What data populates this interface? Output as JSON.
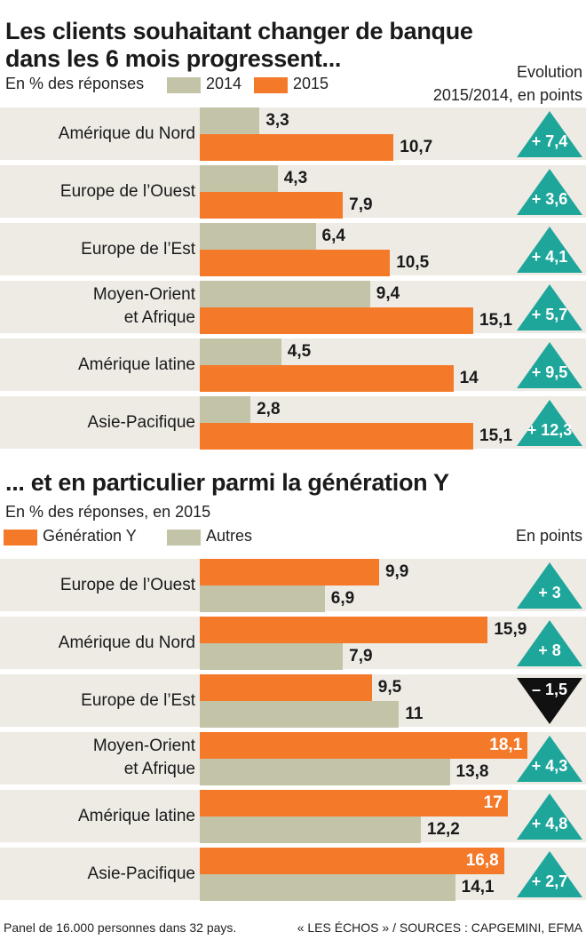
{
  "chart_data": [
    {
      "type": "bar",
      "title": "Les clients souhaitant changer de banque dans les 6 mois progressent...",
      "title_lines": [
        "Les clients souhaitant changer de banque",
        "dans les 6 mois progressent..."
      ],
      "subtitle": "En % des réponses",
      "legend": [
        {
          "name": "2014",
          "color": "#c3c3a7"
        },
        {
          "name": "2015",
          "color": "#f47a2a"
        }
      ],
      "note_lines": [
        "Evolution",
        "2015/2014, en points"
      ],
      "xlim": [
        0,
        20
      ],
      "categories": [
        {
          "label": [
            "Amérique du Nord"
          ]
        },
        {
          "label": [
            "Europe de l’Ouest"
          ]
        },
        {
          "label": [
            "Europe de l’Est"
          ]
        },
        {
          "label": [
            "Moyen-Orient",
            "et Afrique"
          ]
        },
        {
          "label": [
            "Amérique latine"
          ]
        },
        {
          "label": [
            "Asie-Pacifique"
          ]
        }
      ],
      "series": [
        {
          "name": "2014",
          "values": [
            3.3,
            4.3,
            6.4,
            9.4,
            4.5,
            2.8
          ],
          "labels": [
            "3,3",
            "4,3",
            "6,4",
            "9,4",
            "4,5",
            "2,8"
          ]
        },
        {
          "name": "2015",
          "values": [
            10.7,
            7.9,
            10.5,
            15.1,
            14,
            15.1
          ],
          "labels": [
            "10,7",
            "7,9",
            "10,5",
            "15,1",
            "14",
            "15,1"
          ]
        }
      ],
      "changes": [
        {
          "label": "+ 7,4",
          "direction": "up"
        },
        {
          "label": "+ 3,6",
          "direction": "up"
        },
        {
          "label": "+ 4,1",
          "direction": "up"
        },
        {
          "label": "+ 5,7",
          "direction": "up"
        },
        {
          "label": "+ 9,5",
          "direction": "up"
        },
        {
          "label": "+ 12,3",
          "direction": "up"
        }
      ]
    },
    {
      "type": "bar",
      "title": "... et en particulier parmi la génération Y",
      "title_lines": [
        "... et en particulier parmi la génération Y"
      ],
      "subtitle": "En % des réponses, en 2015",
      "legend": [
        {
          "name": "Génération Y",
          "color": "#f47a2a"
        },
        {
          "name": "Autres",
          "color": "#c3c3a7"
        }
      ],
      "note_lines": [
        "En points"
      ],
      "xlim": [
        0,
        20
      ],
      "categories": [
        {
          "label": [
            "Europe de l’Ouest"
          ]
        },
        {
          "label": [
            "Amérique du Nord"
          ]
        },
        {
          "label": [
            "Europe de l’Est"
          ]
        },
        {
          "label": [
            "Moyen-Orient",
            "et Afrique"
          ]
        },
        {
          "label": [
            "Amérique latine"
          ]
        },
        {
          "label": [
            "Asie-Pacifique"
          ]
        }
      ],
      "series": [
        {
          "name": "Génération Y",
          "values": [
            9.9,
            15.9,
            9.5,
            18.1,
            17,
            16.8
          ],
          "labels": [
            "9,9",
            "15,9",
            "9,5",
            "18,1",
            "17",
            "16,8"
          ]
        },
        {
          "name": "Autres",
          "values": [
            6.9,
            7.9,
            11,
            13.8,
            12.2,
            14.1
          ],
          "labels": [
            "6,9",
            "7,9",
            "11",
            "13,8",
            "12,2",
            "14,1"
          ]
        }
      ],
      "changes": [
        {
          "label": "+ 3",
          "direction": "up"
        },
        {
          "label": "+ 8",
          "direction": "up"
        },
        {
          "label": "– 1,5",
          "direction": "down"
        },
        {
          "label": "+ 4,3",
          "direction": "up"
        },
        {
          "label": "+ 4,8",
          "direction": "up"
        },
        {
          "label": "+ 2,7",
          "direction": "up"
        }
      ]
    }
  ],
  "colors": {
    "orange": "#f47a2a",
    "khaki": "#c3c3a7",
    "teal": "#1fa69b",
    "row_bg": "#eeebe5",
    "down": "#111111"
  },
  "footer": {
    "left": "Panel de 16.000 personnes dans 32 pays.",
    "right": "« LES ÉCHOS » / SOURCES : CAPGEMINI, EFMA"
  }
}
